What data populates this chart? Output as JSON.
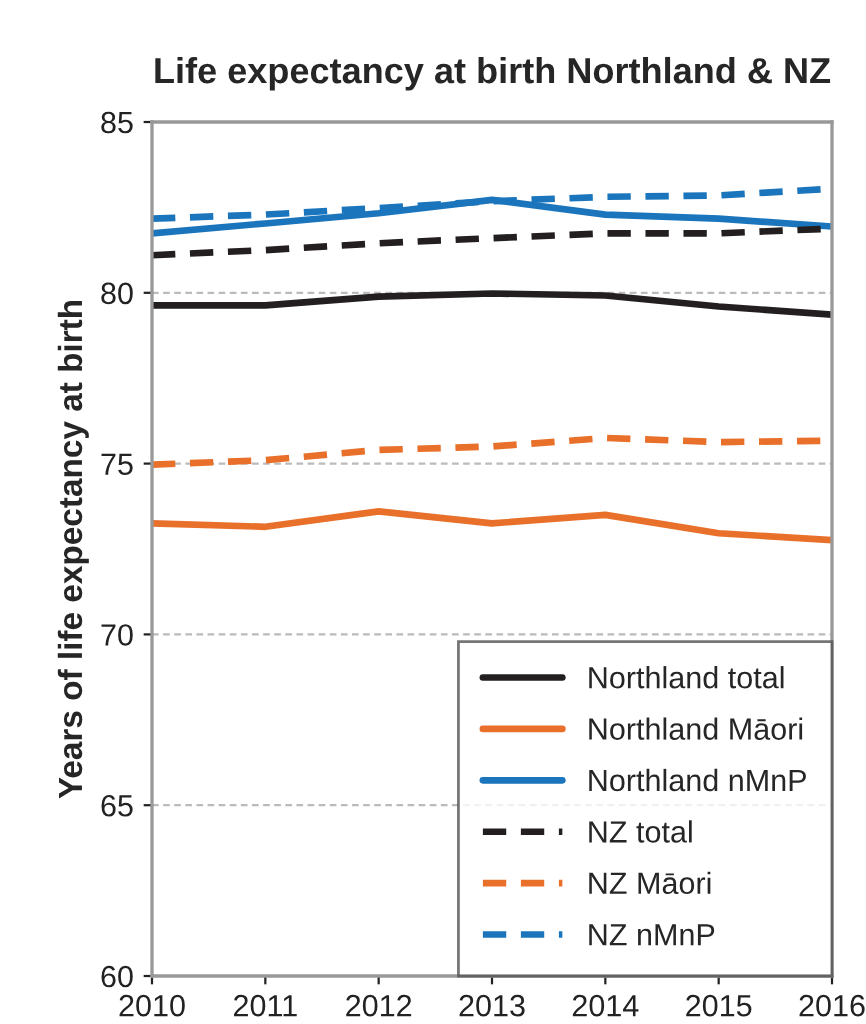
{
  "chart_data": {
    "type": "line",
    "title": "Life expectancy at birth Northland & NZ",
    "ylabel": "Years of life expectancy at birth",
    "x": [
      2010,
      2011,
      2012,
      2013,
      2014,
      2015,
      2016
    ],
    "xlim": [
      2010,
      2016
    ],
    "xticks": [
      2010,
      2011,
      2012,
      2013,
      2014,
      2015,
      2016
    ],
    "ylim": [
      60,
      85
    ],
    "yticks": [
      60,
      65,
      70,
      75,
      80,
      85
    ],
    "grid": "y",
    "legend": "bottom right",
    "series": [
      {
        "name": "Northland total",
        "color": "#231f20",
        "line_style": "solid",
        "values": [
          79.63,
          79.63,
          79.89,
          79.98,
          79.92,
          79.6,
          79.36
        ]
      },
      {
        "name": "Northland Māori",
        "color": "#e8702a",
        "line_style": "solid",
        "values": [
          73.25,
          73.15,
          73.6,
          73.25,
          73.5,
          72.96,
          72.76
        ]
      },
      {
        "name": "Northland nMnP",
        "color": "#1a75bc",
        "line_style": "solid",
        "values": [
          81.74,
          82.03,
          82.33,
          82.72,
          82.29,
          82.17,
          81.94
        ]
      },
      {
        "name": "NZ total",
        "color": "#231f20",
        "line_style": "dashed",
        "values": [
          81.1,
          81.25,
          81.45,
          81.6,
          81.74,
          81.74,
          81.88
        ]
      },
      {
        "name": "NZ Māori",
        "color": "#e8702a",
        "line_style": "dashed",
        "values": [
          74.97,
          75.1,
          75.4,
          75.5,
          75.75,
          75.63,
          75.67
        ]
      },
      {
        "name": "NZ nMnP",
        "color": "#1a75bc",
        "line_style": "dashed",
        "values": [
          82.17,
          82.29,
          82.48,
          82.68,
          82.81,
          82.85,
          83.05
        ]
      }
    ]
  }
}
